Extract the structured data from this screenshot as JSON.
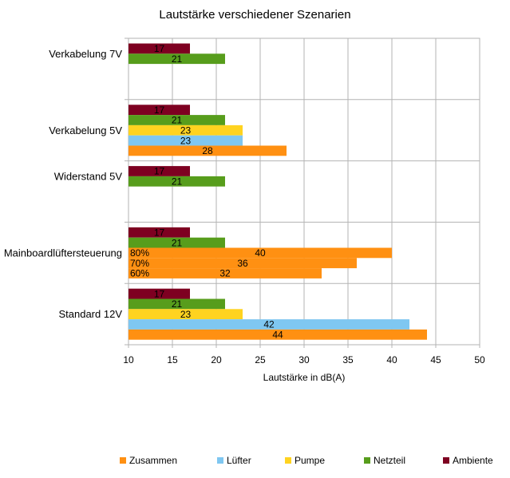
{
  "chart_data": {
    "type": "bar",
    "orientation": "horizontal",
    "title": "Lautstärke verschiedener Szenarien",
    "xlabel": "Lautstärke in dB(A)",
    "ylabel": "",
    "xlim": [
      10,
      50
    ],
    "xticks": [
      10,
      15,
      20,
      25,
      30,
      35,
      40,
      45,
      50
    ],
    "grid": true,
    "legend_position": "bottom",
    "categories": [
      "Verkabelung 7V",
      "Verkabelung 5V",
      "Widerstand 5V",
      "Mainboardlüftersteuerung",
      "Standard 12V"
    ],
    "series_order": [
      "Ambiente",
      "Netzteil",
      "Pumpe",
      "Lüfter",
      "Zusammen"
    ],
    "legend_order": [
      "Zusammen",
      "Lüfter",
      "Pumpe",
      "Netzteil",
      "Ambiente"
    ],
    "series": [
      {
        "name": "Zusammen",
        "color": "#ff9012",
        "values": [
          null,
          28,
          null,
          [
            40,
            36,
            32
          ],
          44
        ],
        "sublabels": [
          null,
          null,
          null,
          [
            "80%",
            "70%",
            "60%"
          ],
          null
        ]
      },
      {
        "name": "Lüfter",
        "color": "#7fc7f1",
        "values": [
          null,
          23,
          null,
          null,
          42
        ]
      },
      {
        "name": "Pumpe",
        "color": "#ffd320",
        "values": [
          null,
          23,
          null,
          null,
          23
        ]
      },
      {
        "name": "Netzteil",
        "color": "#579d1c",
        "values": [
          21,
          21,
          21,
          21,
          21
        ]
      },
      {
        "name": "Ambiente",
        "color": "#7e0021",
        "values": [
          17,
          17,
          17,
          17,
          17
        ]
      }
    ]
  }
}
